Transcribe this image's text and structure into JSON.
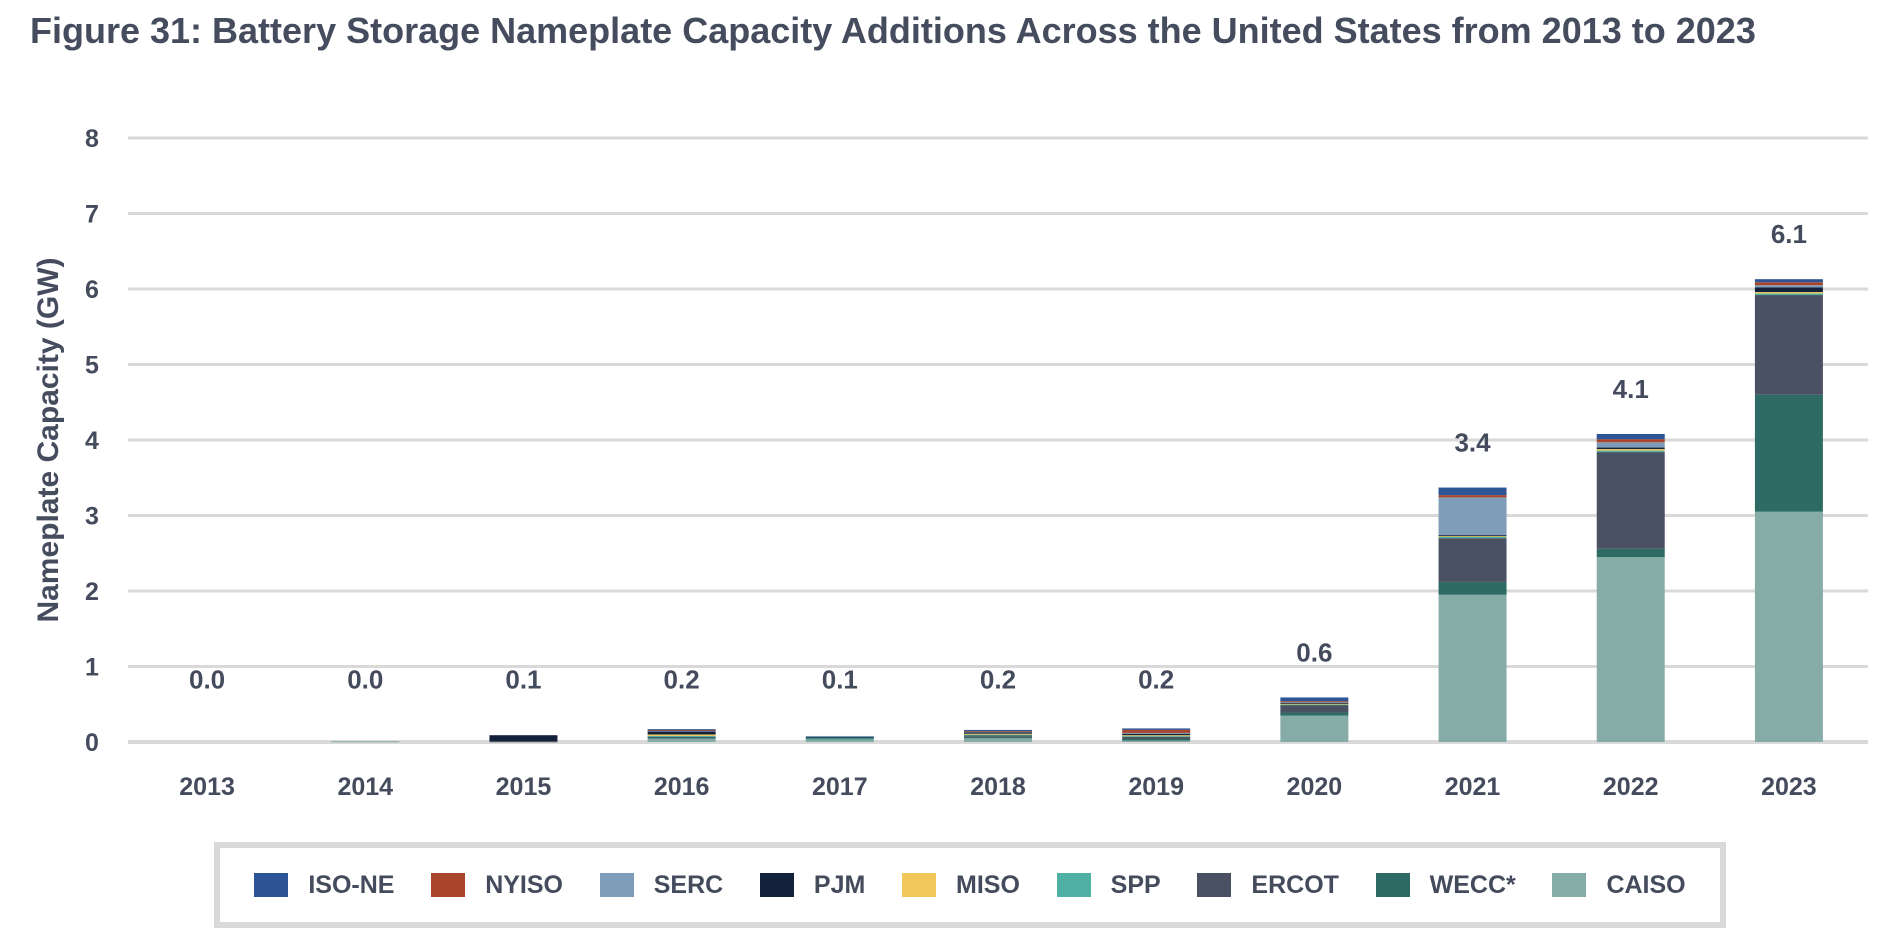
{
  "chart_data": {
    "type": "bar",
    "stacked": true,
    "title": "Figure 31: Battery Storage Nameplate Capacity Additions Across the United States from 2013 to 2023",
    "xlabel": "",
    "ylabel": "Nameplate Capacity (GW)",
    "ylim": [
      0,
      8
    ],
    "yticks": [
      0,
      1,
      2,
      3,
      4,
      5,
      6,
      7,
      8
    ],
    "grid": true,
    "legend_position": "bottom",
    "categories": [
      "2013",
      "2014",
      "2015",
      "2016",
      "2017",
      "2018",
      "2019",
      "2020",
      "2021",
      "2022",
      "2023"
    ],
    "totals": [
      "0.0",
      "0.0",
      "0.1",
      "0.2",
      "0.1",
      "0.2",
      "0.2",
      "0.6",
      "3.4",
      "4.1",
      "6.1"
    ],
    "series": [
      {
        "name": "CAISO",
        "color": "#86aca8",
        "values": [
          0,
          0.01,
          0,
          0.05,
          0.04,
          0.05,
          0.02,
          0.35,
          1.95,
          2.45,
          3.05
        ]
      },
      {
        "name": "WECC*",
        "color": "#2d6b64",
        "values": [
          0,
          0,
          0,
          0.01,
          0.01,
          0.02,
          0.02,
          0.04,
          0.17,
          0.11,
          1.55
        ]
      },
      {
        "name": "ERCOT",
        "color": "#4a5163",
        "values": [
          0,
          0,
          0.01,
          0.01,
          0,
          0.02,
          0.03,
          0.1,
          0.58,
          1.28,
          1.32
        ]
      },
      {
        "name": "SPP",
        "color": "#4fb0a3",
        "values": [
          0,
          0,
          0,
          0.01,
          0.01,
          0.01,
          0.01,
          0.01,
          0.02,
          0.02,
          0.02
        ]
      },
      {
        "name": "MISO",
        "color": "#f1c75c",
        "values": [
          0,
          0,
          0,
          0.02,
          0,
          0.01,
          0.01,
          0.01,
          0.01,
          0.02,
          0.02
        ]
      },
      {
        "name": "PJM",
        "color": "#14213a",
        "values": [
          0,
          0,
          0.08,
          0.04,
          0.01,
          0.02,
          0.02,
          0.01,
          0.01,
          0.02,
          0.06
        ]
      },
      {
        "name": "SERC",
        "color": "#7f9db8",
        "values": [
          0,
          0,
          0,
          0.01,
          0.01,
          0.01,
          0.01,
          0.01,
          0.5,
          0.07,
          0.03
        ]
      },
      {
        "name": "NYISO",
        "color": "#a8452c",
        "values": [
          0,
          0,
          0,
          0.01,
          0,
          0.01,
          0.04,
          0.01,
          0.03,
          0.04,
          0.04
        ]
      },
      {
        "name": "ISO-NE",
        "color": "#2d5494",
        "values": [
          0,
          0,
          0,
          0.01,
          0,
          0.01,
          0.02,
          0.05,
          0.1,
          0.07,
          0.04
        ]
      }
    ]
  },
  "legend": {
    "items": [
      {
        "label": "ISO-NE",
        "color": "#2d5494"
      },
      {
        "label": "NYISO",
        "color": "#a8452c"
      },
      {
        "label": "SERC",
        "color": "#7f9db8"
      },
      {
        "label": "PJM",
        "color": "#14213a"
      },
      {
        "label": "MISO",
        "color": "#f1c75c"
      },
      {
        "label": "SPP",
        "color": "#4fb0a3"
      },
      {
        "label": "ERCOT",
        "color": "#4a5163"
      },
      {
        "label": "WECC*",
        "color": "#2d6b64"
      },
      {
        "label": "CAISO",
        "color": "#86aca8"
      }
    ]
  }
}
